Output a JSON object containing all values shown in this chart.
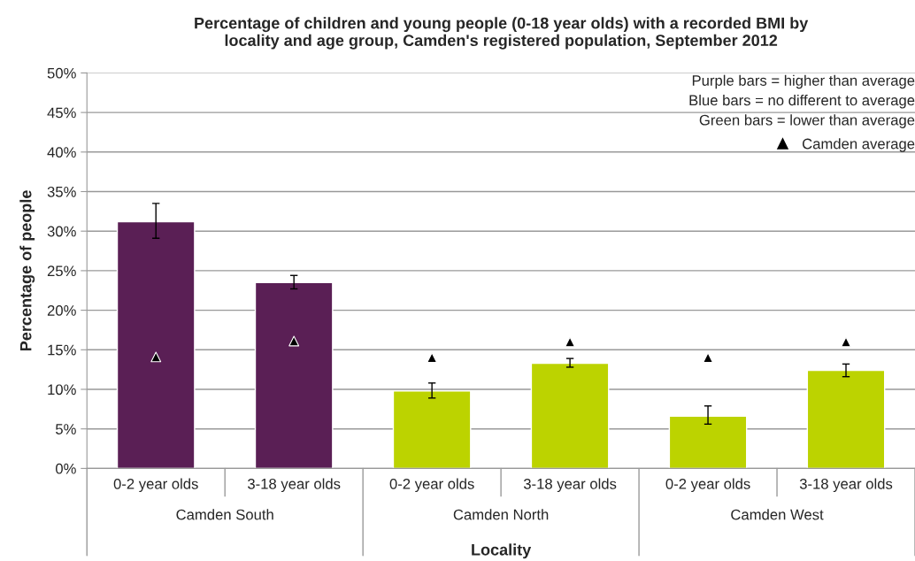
{
  "chart_data": {
    "type": "bar",
    "title": "Percentage of children and young people (0-18 year olds) with a recorded BMI by\nlocality and age group, Camden's registered population, September 2012",
    "xlabel": "Locality",
    "ylabel": "Percentage of people",
    "categories": [
      "0-2 year olds",
      "3-18 year olds",
      "0-2 year olds",
      "3-18 year olds",
      "0-2 year olds",
      "3-18 year olds"
    ],
    "series": [
      {
        "colors": [
          "#5a1f55",
          "#5a1f55",
          "#bcd300",
          "#bcd300",
          "#bcd300",
          "#bcd300"
        ],
        "values": [
          31.2,
          23.5,
          9.8,
          13.3,
          6.6,
          12.4
        ],
        "errors": [
          [
            29.1,
            33.5
          ],
          [
            22.7,
            24.4
          ],
          [
            8.9,
            10.8
          ],
          [
            12.8,
            13.9
          ],
          [
            5.6,
            7.9
          ],
          [
            11.6,
            13.2
          ]
        ]
      },
      {
        "type": "scatter",
        "name": "Camden average",
        "color": "#000000",
        "marker": "triangle",
        "values": [
          14.1,
          16.1,
          14.0,
          16.0,
          14.0,
          16.0
        ]
      }
    ],
    "ylim": [
      0,
      50
    ],
    "yticks": [
      {
        "value": 0,
        "label": "0%"
      },
      {
        "value": 5,
        "label": "5%"
      },
      {
        "value": 10,
        "label": "10%"
      },
      {
        "value": 15,
        "label": "15%"
      },
      {
        "value": 20,
        "label": "20%"
      },
      {
        "value": 25,
        "label": "25%"
      },
      {
        "value": 30,
        "label": "30%"
      },
      {
        "value": 35,
        "label": "35%"
      },
      {
        "value": 40,
        "label": "40%"
      },
      {
        "value": 45,
        "label": "45%"
      },
      {
        "value": 50,
        "label": "50%"
      }
    ],
    "grid": "y",
    "legend": "top right",
    "annotations": [
      "Purple bars = higher than average",
      "Blue bars = no different to average",
      "Green bars = lower than average",
      "Camden South",
      "Camden North",
      "Camden West"
    ]
  }
}
